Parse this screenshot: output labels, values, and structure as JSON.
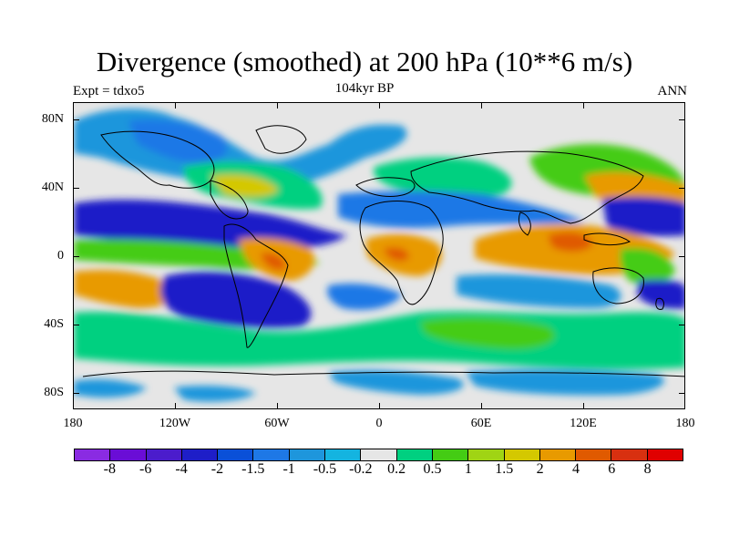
{
  "title": "Divergence (smoothed) at 200 hPa (10**6 m/s)",
  "subtitle_left": "Expt = tdxo5",
  "subtitle_center": "104kyr BP",
  "subtitle_right": "ANN",
  "map": {
    "projection": "cylindrical-equidistant",
    "lon_range": [
      -180,
      180
    ],
    "lat_range": [
      -90,
      90
    ],
    "land_outline_color": "#000000",
    "background_color": "#e6e6e6"
  },
  "lat_labels": [
    "80N",
    "40N",
    "0",
    "40S",
    "80S"
  ],
  "lon_labels": [
    "180",
    "120W",
    "60W",
    "0",
    "60E",
    "120E",
    "180"
  ],
  "colorbar": {
    "labels": [
      "-8",
      "-6",
      "-4",
      "-2",
      "-1.5",
      "-1",
      "-0.5",
      "-0.2",
      "0.2",
      "0.5",
      "1",
      "1.5",
      "2",
      "4",
      "6",
      "8"
    ],
    "colors": [
      "#8a2be2",
      "#6a0dd6",
      "#4b1ccc",
      "#1e1ec8",
      "#0a50d8",
      "#1e78e6",
      "#1e96dc",
      "#14b4e0",
      "#e6e6e6",
      "#00d080",
      "#44cc14",
      "#a0d414",
      "#d4c800",
      "#e89a00",
      "#e05a00",
      "#d83010",
      "#e00000"
    ]
  }
}
